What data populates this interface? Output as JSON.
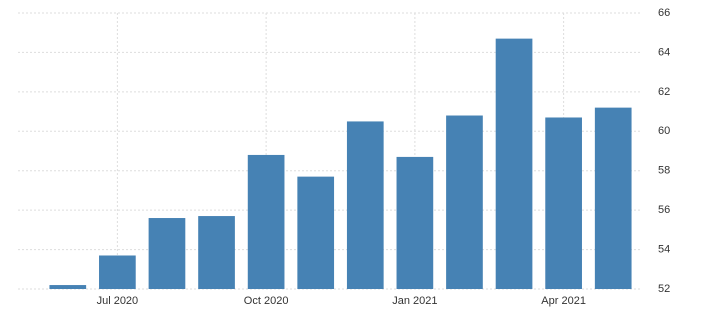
{
  "chart_data": {
    "type": "bar",
    "categories": [
      null,
      "Jul 2020",
      null,
      null,
      "Oct 2020",
      null,
      null,
      "Jan 2021",
      null,
      null,
      "Apr 2021",
      null
    ],
    "values": [
      52.2,
      53.7,
      55.6,
      55.7,
      58.8,
      57.7,
      60.5,
      58.7,
      60.8,
      64.7,
      60.7,
      61.2
    ],
    "color": "#4682b4",
    "ylim": [
      52,
      66
    ],
    "yticks": [
      52,
      54,
      56,
      58,
      60,
      62,
      64,
      66
    ],
    "grid": true
  }
}
